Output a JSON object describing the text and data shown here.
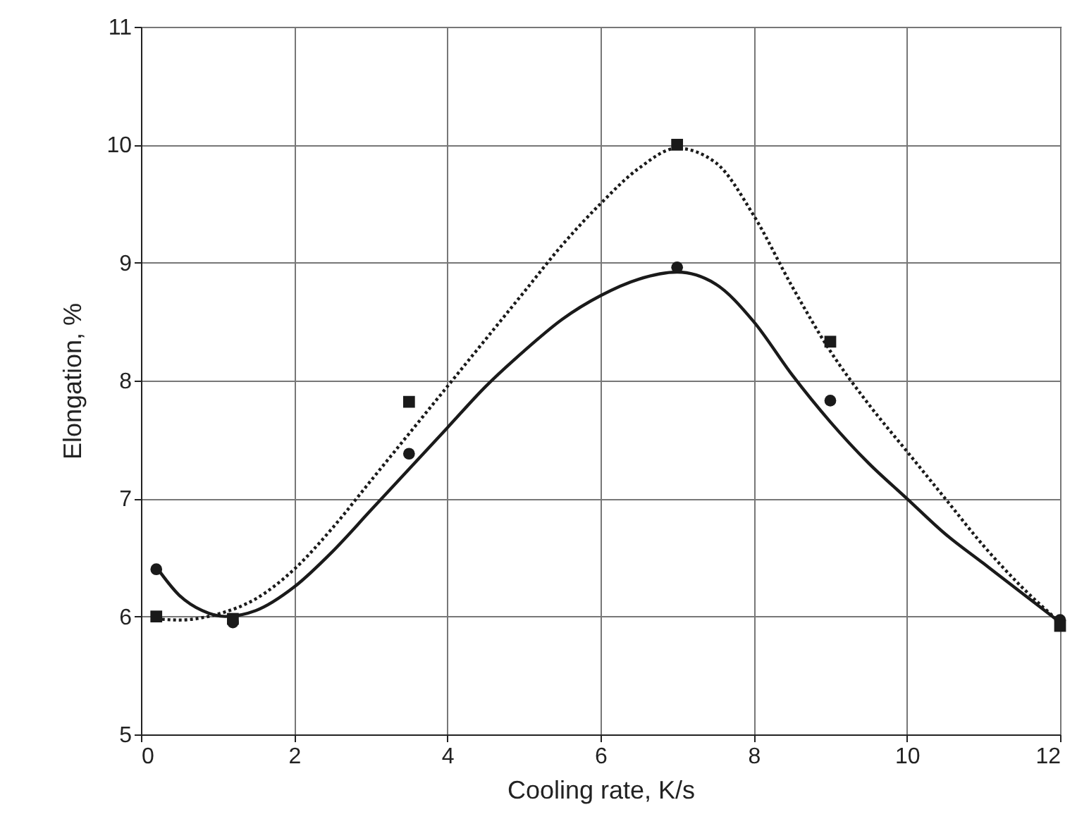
{
  "chart_data": {
    "type": "scatter",
    "xlabel": "Cooling rate, K/s",
    "ylabel": "Elongation, %",
    "xlim": [
      0,
      12
    ],
    "ylim": [
      5,
      11
    ],
    "xticks": [
      0,
      2,
      4,
      6,
      8,
      10,
      12
    ],
    "yticks": [
      5,
      6,
      7,
      8,
      9,
      10,
      11
    ],
    "grid": true,
    "series": [
      {
        "type": "line",
        "color": "#1a1a1a",
        "line_style": "solid",
        "x": [
          0.2,
          0.5,
          0.8,
          1.1,
          1.5,
          2,
          2.5,
          3,
          3.5,
          4,
          4.5,
          5,
          5.5,
          6,
          6.5,
          7,
          7.5,
          8,
          8.5,
          9,
          9.5,
          10,
          10.5,
          11,
          11.5,
          12
        ],
        "values": [
          6.42,
          6.18,
          6.05,
          6.0,
          6.05,
          6.25,
          6.55,
          6.9,
          7.25,
          7.6,
          7.95,
          8.25,
          8.52,
          8.72,
          8.86,
          8.92,
          8.82,
          8.5,
          8.05,
          7.65,
          7.3,
          7.0,
          6.7,
          6.45,
          6.2,
          5.95
        ]
      },
      {
        "type": "line",
        "color": "#1a1a1a",
        "line_style": "dotted",
        "x": [
          0.2,
          0.5,
          1,
          1.5,
          2,
          2.5,
          3,
          3.5,
          4,
          4.5,
          5,
          5.5,
          6,
          6.5,
          7,
          7.5,
          8,
          8.5,
          9,
          9.5,
          10,
          10.5,
          11,
          11.5,
          12
        ],
        "values": [
          5.98,
          5.97,
          6.02,
          6.15,
          6.4,
          6.75,
          7.15,
          7.55,
          7.95,
          8.35,
          8.75,
          9.15,
          9.5,
          9.8,
          9.97,
          9.85,
          9.4,
          8.8,
          8.25,
          7.8,
          7.4,
          7.0,
          6.6,
          6.25,
          5.95
        ]
      },
      {
        "color": "#1a1a1a",
        "marker": "circle",
        "x": [
          0.2,
          1.2,
          3.5,
          7,
          9,
          12
        ],
        "values": [
          6.4,
          5.95,
          7.38,
          8.96,
          7.83,
          5.97
        ]
      },
      {
        "color": "#1a1a1a",
        "marker": "square",
        "x": [
          0.2,
          1.2,
          3.5,
          7,
          9,
          12
        ],
        "values": [
          6.0,
          5.98,
          7.82,
          10.0,
          8.33,
          5.92
        ]
      }
    ]
  }
}
